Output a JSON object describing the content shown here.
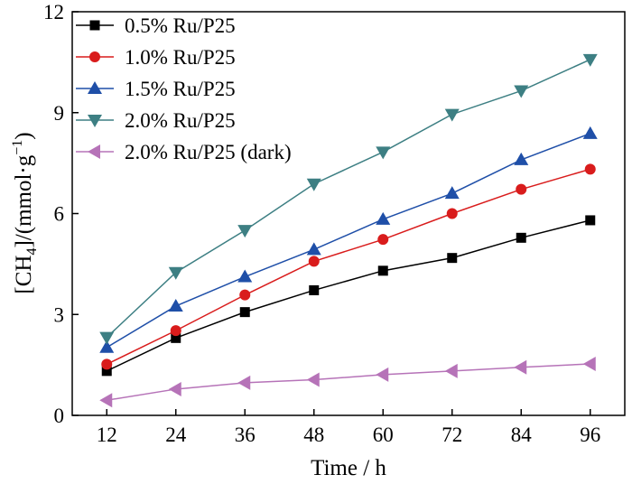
{
  "chart_data": {
    "type": "line",
    "xlabel": "Time / h",
    "ylabel": {
      "prefix": "[CH",
      "sub": "4",
      "mid": "]/(mmol·g",
      "sup": "−1",
      "suffix": ")"
    },
    "xlim": [
      6,
      102
    ],
    "ylim": [
      0,
      12
    ],
    "x": [
      12,
      24,
      36,
      48,
      60,
      72,
      84,
      96
    ],
    "xticks": [
      "12",
      "24",
      "36",
      "48",
      "60",
      "72",
      "84",
      "96"
    ],
    "yticks": [
      0,
      3,
      6,
      9,
      12
    ],
    "ytick_labels": [
      "0",
      "3",
      "6",
      "9",
      "12"
    ],
    "grid": false,
    "legend_position": "top-left",
    "series": [
      {
        "name": "0.5% Ru/P25",
        "marker": "square",
        "color": "#000000",
        "values": [
          1.32,
          2.3,
          3.07,
          3.72,
          4.3,
          4.68,
          5.28,
          5.8
        ]
      },
      {
        "name": "1.0% Ru/P25",
        "marker": "circle",
        "color": "#d91c1c",
        "values": [
          1.52,
          2.52,
          3.58,
          4.58,
          5.23,
          6.0,
          6.72,
          7.32
        ]
      },
      {
        "name": "1.5% Ru/P25",
        "marker": "triangle-up",
        "color": "#1f4fa8",
        "values": [
          2.02,
          3.25,
          4.12,
          4.93,
          5.83,
          6.6,
          7.6,
          8.38
        ]
      },
      {
        "name": "2.0% Ru/P25",
        "marker": "triangle-down",
        "color": "#3d7f83",
        "values": [
          2.32,
          4.25,
          5.5,
          6.88,
          7.83,
          8.95,
          9.65,
          10.58
        ]
      },
      {
        "name": "2.0% Ru/P25 (dark)",
        "marker": "triangle-left",
        "color": "#b673b8",
        "values": [
          0.45,
          0.78,
          0.97,
          1.06,
          1.21,
          1.32,
          1.43,
          1.53
        ]
      }
    ]
  }
}
